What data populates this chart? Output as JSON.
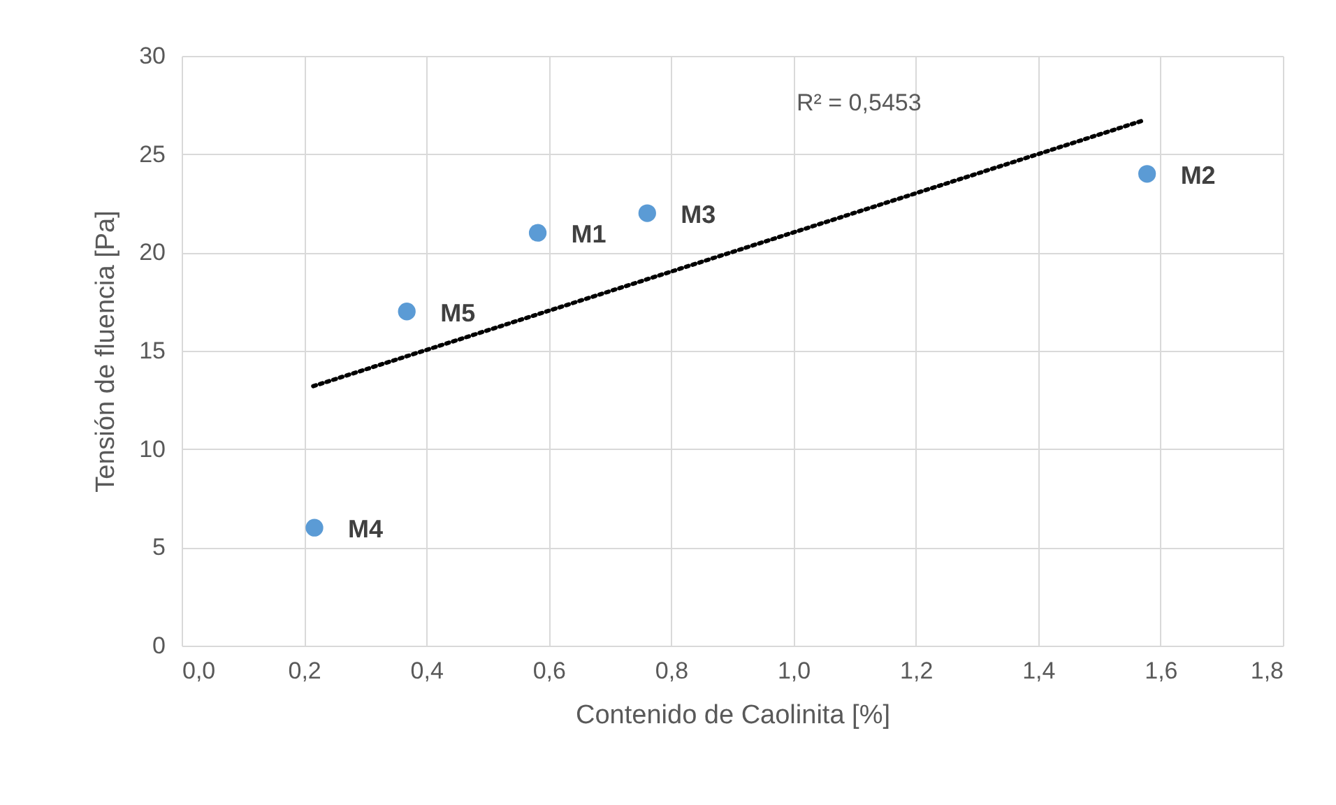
{
  "chart_data": {
    "type": "scatter",
    "xlabel": "Contenido de Caolinita [%]",
    "ylabel": "Tensión de fluencia [Pa]",
    "series": [
      {
        "color": "#5b9bd5",
        "marker": "circle",
        "x": [
          0.582,
          1.578,
          0.761,
          0.217,
          0.368
        ],
        "values": [
          21,
          24,
          22,
          6,
          17
        ]
      },
      {
        "type": "line",
        "color": "#000000",
        "line_style": "dotted",
        "x": [
          0.215,
          1.57
        ],
        "values": [
          13.2,
          26.7
        ]
      }
    ],
    "xlim": [
      0,
      1.8
    ],
    "xticks": [
      {
        "value": 0,
        "label": "0,0"
      },
      {
        "value": 0.2,
        "label": "0,2"
      },
      {
        "value": 0.4,
        "label": "0,4"
      },
      {
        "value": 0.6,
        "label": "0,6"
      },
      {
        "value": 0.8,
        "label": "0,8"
      },
      {
        "value": 1.0,
        "label": "1,0"
      },
      {
        "value": 1.2,
        "label": "1,2"
      },
      {
        "value": 1.4,
        "label": "1,4"
      },
      {
        "value": 1.6,
        "label": "1,6"
      },
      {
        "value": 1.8,
        "label": "1,8"
      }
    ],
    "ylim": [
      0,
      30
    ],
    "yticks": [
      0,
      5,
      10,
      15,
      20,
      25,
      30
    ],
    "grid": true,
    "annotations": [
      {
        "text": "M1",
        "x": 0.582,
        "y": 21
      },
      {
        "text": "M2",
        "x": 1.578,
        "y": 24
      },
      {
        "text": "M3",
        "x": 0.761,
        "y": 22
      },
      {
        "text": "M4",
        "x": 0.217,
        "y": 6
      },
      {
        "text": "M5",
        "x": 0.368,
        "y": 17
      },
      "R² = 0,5453"
    ]
  }
}
